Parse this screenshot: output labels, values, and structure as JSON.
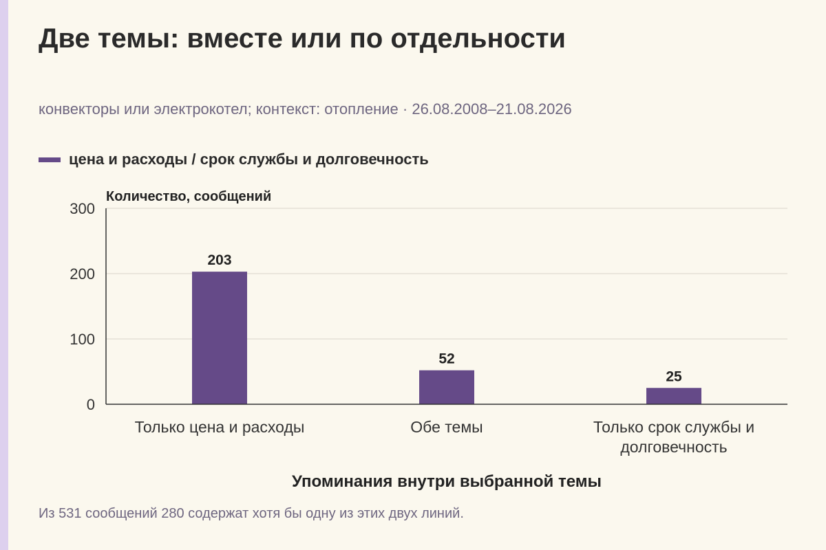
{
  "colors": {
    "bar": "#654a88",
    "accent_strip": "#ddd0ee",
    "background": "#fbf8ee"
  },
  "header": {
    "title": "Две темы: вместе или по отдельности",
    "subtitle": "конвекторы или электрокотел; контекст: отопление · 26.08.2008–21.08.2026"
  },
  "footnote": "Из 531 сообщений 280 содержат хотя бы одну из этих двух линий.",
  "chart_data": {
    "type": "bar",
    "categories": [
      [
        "Только цена и расходы"
      ],
      [
        "Обе темы"
      ],
      [
        "Только срок службы и",
        "долговечность"
      ]
    ],
    "series": [
      {
        "name": "цена и расходы / срок службы и долговечность",
        "values": [
          203,
          52,
          25
        ]
      }
    ],
    "xlabel": "Упоминания внутри выбранной темы",
    "ylabel": "Количество, сообщений",
    "ylim": [
      0,
      300
    ],
    "yticks": [
      0,
      100,
      200,
      300
    ],
    "grid": true,
    "legend": "top-left"
  }
}
